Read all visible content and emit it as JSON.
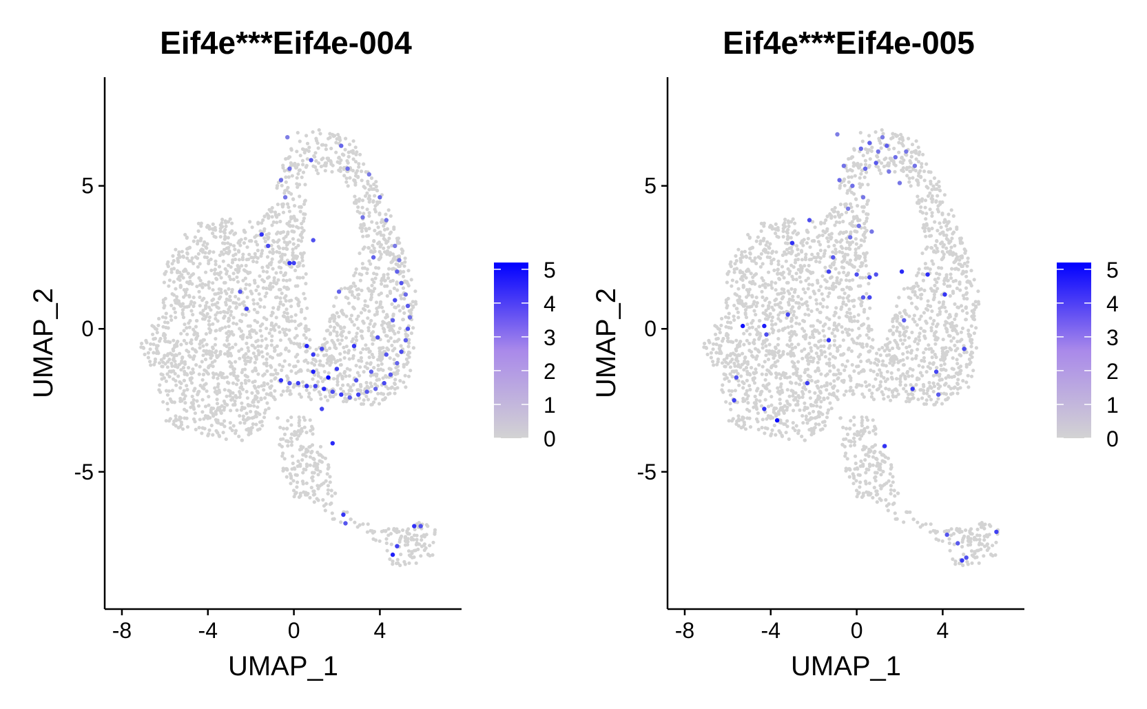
{
  "chart_data": [
    {
      "type": "scatter",
      "title": "Eif4e***Eif4e-004",
      "xlabel": "UMAP_1",
      "ylabel": "UMAP_2",
      "xlim": [
        -8.8,
        7.8
      ],
      "ylim": [
        -9.8,
        8.8
      ],
      "xticks": [
        -8,
        -4,
        0,
        4
      ],
      "yticks": [
        -5,
        0,
        5
      ],
      "grid": false,
      "color_scale": {
        "low": "#d3d3d3",
        "high": "#0000ff",
        "min": 0,
        "max": 5.2,
        "ticks": [
          0,
          1,
          2,
          3,
          4,
          5
        ]
      },
      "background_color": "#d3d3d3",
      "expressing_points": [
        {
          "x": 4.8,
          "y": 2.0,
          "v": 2.8
        },
        {
          "x": 5.0,
          "y": 1.6,
          "v": 3.1
        },
        {
          "x": 5.2,
          "y": 1.2,
          "v": 2.6
        },
        {
          "x": 5.3,
          "y": 0.8,
          "v": 3.0
        },
        {
          "x": 5.4,
          "y": 0.4,
          "v": 2.4
        },
        {
          "x": 5.3,
          "y": 0.0,
          "v": 3.2
        },
        {
          "x": 5.2,
          "y": -0.4,
          "v": 2.9
        },
        {
          "x": 5.0,
          "y": -0.8,
          "v": 3.3
        },
        {
          "x": 4.8,
          "y": -1.2,
          "v": 2.7
        },
        {
          "x": 4.5,
          "y": -1.6,
          "v": 3.0
        },
        {
          "x": 4.2,
          "y": -1.9,
          "v": 3.4
        },
        {
          "x": 3.8,
          "y": -2.1,
          "v": 2.8
        },
        {
          "x": 3.4,
          "y": -2.2,
          "v": 3.1
        },
        {
          "x": 3.0,
          "y": -2.3,
          "v": 3.6
        },
        {
          "x": 2.6,
          "y": -2.4,
          "v": 2.9
        },
        {
          "x": 2.2,
          "y": -2.3,
          "v": 3.8
        },
        {
          "x": 1.8,
          "y": -2.2,
          "v": 3.3
        },
        {
          "x": 1.4,
          "y": -2.1,
          "v": 4.2
        },
        {
          "x": 1.0,
          "y": -2.0,
          "v": 3.5
        },
        {
          "x": 0.6,
          "y": -2.0,
          "v": 3.9
        },
        {
          "x": 0.2,
          "y": -1.9,
          "v": 3.6
        },
        {
          "x": -0.2,
          "y": -1.9,
          "v": 3.2
        },
        {
          "x": -0.6,
          "y": -1.8,
          "v": 4.0
        },
        {
          "x": 1.6,
          "y": -1.7,
          "v": 5.1
        },
        {
          "x": 0.9,
          "y": -1.5,
          "v": 4.4
        },
        {
          "x": 2.0,
          "y": -1.4,
          "v": 3.7
        },
        {
          "x": 2.9,
          "y": -1.8,
          "v": 3.2
        },
        {
          "x": 3.6,
          "y": -1.5,
          "v": 2.9
        },
        {
          "x": 4.3,
          "y": -0.9,
          "v": 3.1
        },
        {
          "x": 0.6,
          "y": -0.6,
          "v": 4.3
        },
        {
          "x": 0.9,
          "y": -0.9,
          "v": 3.8
        },
        {
          "x": 1.3,
          "y": -0.7,
          "v": 3.4
        },
        {
          "x": 2.8,
          "y": -0.6,
          "v": 3.9
        },
        {
          "x": 3.9,
          "y": -0.3,
          "v": 3.3
        },
        {
          "x": 4.6,
          "y": 0.3,
          "v": 2.9
        },
        {
          "x": 4.7,
          "y": 1.0,
          "v": 3.4
        },
        {
          "x": 4.9,
          "y": 2.4,
          "v": 2.3
        },
        {
          "x": 4.7,
          "y": 2.9,
          "v": 2.2
        },
        {
          "x": 4.3,
          "y": 3.8,
          "v": 2.4
        },
        {
          "x": 4.0,
          "y": 4.6,
          "v": 2.6
        },
        {
          "x": 3.5,
          "y": 5.4,
          "v": 2.2
        },
        {
          "x": 2.2,
          "y": 6.4,
          "v": 2.7
        },
        {
          "x": 0.8,
          "y": 5.9,
          "v": 3.0
        },
        {
          "x": -0.2,
          "y": 5.6,
          "v": 2.4
        },
        {
          "x": -0.6,
          "y": 5.2,
          "v": 2.6
        },
        {
          "x": -0.4,
          "y": 4.6,
          "v": 2.3
        },
        {
          "x": 2.5,
          "y": 5.6,
          "v": 2.5
        },
        {
          "x": -0.3,
          "y": 6.7,
          "v": 2.1
        },
        {
          "x": 0.0,
          "y": 2.3,
          "v": 3.6
        },
        {
          "x": -1.5,
          "y": 3.3,
          "v": 4.0
        },
        {
          "x": -2.2,
          "y": 0.7,
          "v": 3.6
        },
        {
          "x": -0.2,
          "y": 2.3,
          "v": 4.1
        },
        {
          "x": -1.2,
          "y": 2.9,
          "v": 3.4
        },
        {
          "x": 0.9,
          "y": 3.1,
          "v": 3.2
        },
        {
          "x": 2.1,
          "y": 1.3,
          "v": 2.8
        },
        {
          "x": -2.5,
          "y": 1.3,
          "v": 3.0
        },
        {
          "x": 1.3,
          "y": -2.8,
          "v": 3.5
        },
        {
          "x": 1.8,
          "y": -4.0,
          "v": 4.2
        },
        {
          "x": 2.3,
          "y": -6.5,
          "v": 3.9
        },
        {
          "x": 2.4,
          "y": -6.8,
          "v": 3.1
        },
        {
          "x": 4.6,
          "y": -7.9,
          "v": 4.4
        },
        {
          "x": 4.8,
          "y": -7.6,
          "v": 3.6
        },
        {
          "x": 5.6,
          "y": -6.9,
          "v": 4.0
        },
        {
          "x": 5.9,
          "y": -6.9,
          "v": 3.2
        },
        {
          "x": 3.2,
          "y": 3.9,
          "v": 2.4
        },
        {
          "x": 3.7,
          "y": 2.5,
          "v": 2.8
        }
      ]
    },
    {
      "type": "scatter",
      "title": "Eif4e***Eif4e-005",
      "xlabel": "UMAP_1",
      "ylabel": "UMAP_2",
      "xlim": [
        -8.8,
        7.8
      ],
      "ylim": [
        -9.8,
        8.8
      ],
      "xticks": [
        -8,
        -4,
        0,
        4
      ],
      "yticks": [
        -5,
        0,
        5
      ],
      "grid": false,
      "color_scale": {
        "low": "#d3d3d3",
        "high": "#0000ff",
        "min": 0,
        "max": 5.2,
        "ticks": [
          0,
          1,
          2,
          3,
          4,
          5
        ]
      },
      "background_color": "#d3d3d3",
      "expressing_points": [
        {
          "x": 0.2,
          "y": 6.3,
          "v": 2.6
        },
        {
          "x": 0.6,
          "y": 6.5,
          "v": 2.8
        },
        {
          "x": 1.0,
          "y": 6.2,
          "v": 2.4
        },
        {
          "x": 1.4,
          "y": 6.4,
          "v": 2.9
        },
        {
          "x": 1.8,
          "y": 6.0,
          "v": 2.5
        },
        {
          "x": 2.3,
          "y": 6.2,
          "v": 2.3
        },
        {
          "x": 2.7,
          "y": 5.7,
          "v": 2.4
        },
        {
          "x": 0.4,
          "y": 5.6,
          "v": 2.7
        },
        {
          "x": 0.9,
          "y": 5.8,
          "v": 3.0
        },
        {
          "x": 1.5,
          "y": 5.5,
          "v": 2.2
        },
        {
          "x": -0.6,
          "y": 5.7,
          "v": 2.4
        },
        {
          "x": -0.8,
          "y": 5.2,
          "v": 2.6
        },
        {
          "x": -0.2,
          "y": 5.0,
          "v": 2.5
        },
        {
          "x": 0.3,
          "y": 4.6,
          "v": 2.3
        },
        {
          "x": -0.4,
          "y": 4.2,
          "v": 2.2
        },
        {
          "x": 0.1,
          "y": 3.6,
          "v": 2.4
        },
        {
          "x": -0.3,
          "y": 3.2,
          "v": 2.5
        },
        {
          "x": 0.7,
          "y": 3.4,
          "v": 2.3
        },
        {
          "x": 2.0,
          "y": 5.1,
          "v": 2.3
        },
        {
          "x": -0.9,
          "y": 6.8,
          "v": 2.1
        },
        {
          "x": 1.2,
          "y": 6.7,
          "v": 2.2
        },
        {
          "x": -1.3,
          "y": 2.0,
          "v": 3.6
        },
        {
          "x": -1.1,
          "y": 2.5,
          "v": 3.1
        },
        {
          "x": 0.0,
          "y": 1.9,
          "v": 3.3
        },
        {
          "x": 0.6,
          "y": 1.8,
          "v": 3.7
        },
        {
          "x": 0.9,
          "y": 1.9,
          "v": 3.2
        },
        {
          "x": 0.6,
          "y": 1.1,
          "v": 3.5
        },
        {
          "x": 0.3,
          "y": 1.1,
          "v": 3.0
        },
        {
          "x": 2.1,
          "y": 2.0,
          "v": 4.2
        },
        {
          "x": 3.3,
          "y": 1.9,
          "v": 4.1
        },
        {
          "x": 4.1,
          "y": 1.2,
          "v": 3.9
        },
        {
          "x": -3.0,
          "y": 3.0,
          "v": 4.0
        },
        {
          "x": -2.2,
          "y": 3.8,
          "v": 3.3
        },
        {
          "x": -5.3,
          "y": 0.1,
          "v": 4.8
        },
        {
          "x": -4.3,
          "y": 0.1,
          "v": 4.5
        },
        {
          "x": -3.2,
          "y": 0.5,
          "v": 3.5
        },
        {
          "x": -4.2,
          "y": -0.2,
          "v": 3.3
        },
        {
          "x": -1.3,
          "y": -0.4,
          "v": 3.9
        },
        {
          "x": -5.6,
          "y": -1.7,
          "v": 3.2
        },
        {
          "x": -5.7,
          "y": -2.5,
          "v": 3.6
        },
        {
          "x": -4.3,
          "y": -2.8,
          "v": 4.0
        },
        {
          "x": -3.7,
          "y": -3.2,
          "v": 5.0
        },
        {
          "x": -2.3,
          "y": -1.9,
          "v": 3.7
        },
        {
          "x": 1.3,
          "y": -4.1,
          "v": 4.0
        },
        {
          "x": 2.6,
          "y": -2.1,
          "v": 3.9
        },
        {
          "x": 3.7,
          "y": -1.5,
          "v": 3.5
        },
        {
          "x": 3.8,
          "y": -2.3,
          "v": 3.0
        },
        {
          "x": 5.0,
          "y": -0.7,
          "v": 3.3
        },
        {
          "x": 2.2,
          "y": 0.3,
          "v": 2.9
        },
        {
          "x": 4.7,
          "y": -7.5,
          "v": 3.0
        },
        {
          "x": 4.9,
          "y": -8.1,
          "v": 3.8
        },
        {
          "x": 4.2,
          "y": -7.2,
          "v": 3.1
        },
        {
          "x": 6.5,
          "y": -7.1,
          "v": 3.6
        },
        {
          "x": 5.1,
          "y": -8.0,
          "v": 3.2
        }
      ]
    }
  ]
}
